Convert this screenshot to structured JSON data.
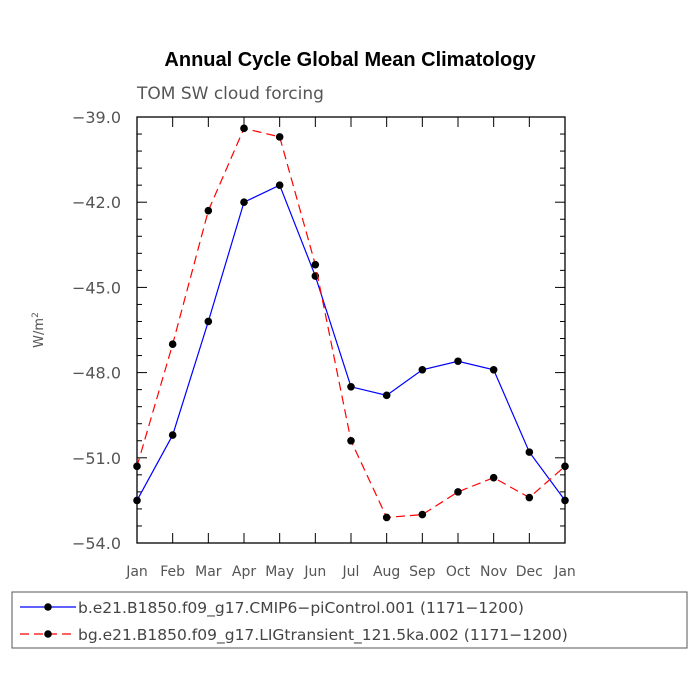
{
  "chart_data": {
    "type": "line",
    "title": "Annual Cycle Global Mean Climatology",
    "subtitle": "TOM SW cloud forcing",
    "ylabel": "W/m",
    "ylabel_sup": "2",
    "ylim": [
      -54.0,
      -39.0
    ],
    "yticks": [
      -39.0,
      -42.0,
      -45.0,
      -48.0,
      -51.0,
      -54.0
    ],
    "ytick_labels": [
      "−39.0",
      "−42.0",
      "−45.0",
      "−48.0",
      "−51.0",
      "−54.0"
    ],
    "categories": [
      "Jan",
      "Feb",
      "Mar",
      "Apr",
      "May",
      "Jun",
      "Jul",
      "Aug",
      "Sep",
      "Oct",
      "Nov",
      "Dec",
      "Jan"
    ],
    "series": [
      {
        "name": "b.e21.B1850.f09_g17.CMIP6−piControl.001 (1171−1200)",
        "color": "#0000ff",
        "dash": "solid",
        "values": [
          -52.5,
          -50.2,
          -46.2,
          -42.0,
          -41.4,
          -44.6,
          -48.5,
          -48.8,
          -47.9,
          -47.6,
          -47.9,
          -50.8,
          -52.5
        ]
      },
      {
        "name": "bg.e21.B1850.f09_g17.LIGtransient_121.5ka.002 (1171−1200)",
        "color": "#ff0000",
        "dash": "dashed",
        "values": [
          -51.3,
          -47.0,
          -42.3,
          -39.4,
          -39.7,
          -44.2,
          -50.4,
          -53.1,
          -53.0,
          -52.2,
          -51.7,
          -52.4,
          -51.3
        ]
      }
    ]
  }
}
